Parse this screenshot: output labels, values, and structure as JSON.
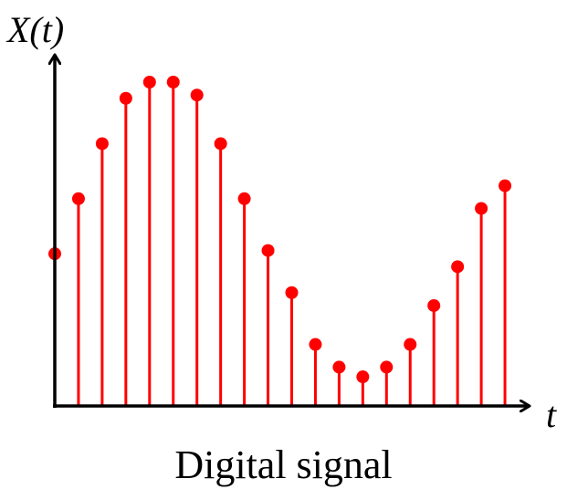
{
  "chart_data": {
    "type": "stem",
    "title": "Digital signal",
    "ylabel": "X(t)",
    "xlabel": "t",
    "x": [
      1,
      2,
      3,
      4,
      5,
      6,
      7,
      8,
      9,
      10,
      11,
      12,
      13,
      14,
      15,
      16,
      17,
      18,
      19,
      20
    ],
    "values": [
      0.47,
      0.64,
      0.81,
      0.95,
      1.0,
      1.0,
      0.96,
      0.81,
      0.64,
      0.48,
      0.35,
      0.19,
      0.12,
      0.09,
      0.12,
      0.19,
      0.31,
      0.43,
      0.61,
      0.68
    ],
    "ylim": [
      0,
      1.05
    ],
    "colors": {
      "stem": "#ff0000",
      "marker": "#ff0000",
      "axis": "#000000"
    }
  }
}
